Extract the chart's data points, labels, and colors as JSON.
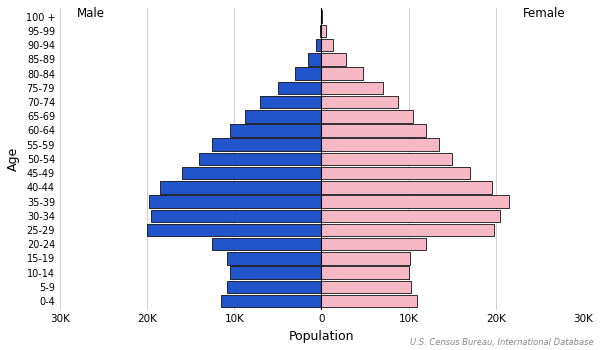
{
  "xlabel": "Population",
  "ylabel": "Age",
  "source": "U.S. Census Bureau, International Database",
  "male_label": "Male",
  "female_label": "Female",
  "age_groups": [
    "0-4",
    "5-9",
    "10-14",
    "15-19",
    "20-24",
    "25-29",
    "30-34",
    "35-39",
    "40-44",
    "45-49",
    "50-54",
    "55-59",
    "60-64",
    "65-69",
    "70-74",
    "75-79",
    "80-84",
    "85-89",
    "90-94",
    "95-99",
    "100 +"
  ],
  "male_values": [
    11500,
    10800,
    10500,
    10800,
    12500,
    20000,
    19500,
    19800,
    18500,
    16000,
    14000,
    12500,
    10500,
    8800,
    7000,
    5000,
    3000,
    1500,
    600,
    180,
    30
  ],
  "female_values": [
    11000,
    10300,
    10000,
    10200,
    12000,
    19800,
    20500,
    21500,
    19500,
    17000,
    15000,
    13500,
    12000,
    10500,
    8800,
    7000,
    4800,
    2800,
    1300,
    500,
    100
  ],
  "male_color": "#2255cc",
  "female_color": "#f5b8c4",
  "bar_edge_color": "#111111",
  "xlim": 30000,
  "xtick_values": [
    -30000,
    -20000,
    -10000,
    0,
    10000,
    20000,
    30000
  ],
  "xtick_labels": [
    "30K",
    "20K",
    "10K",
    "0",
    "10K",
    "20K",
    "30K"
  ],
  "grid_color": "#d0d0d0",
  "background_color": "#ffffff",
  "bar_linewidth": 0.6,
  "bar_height": 0.88
}
